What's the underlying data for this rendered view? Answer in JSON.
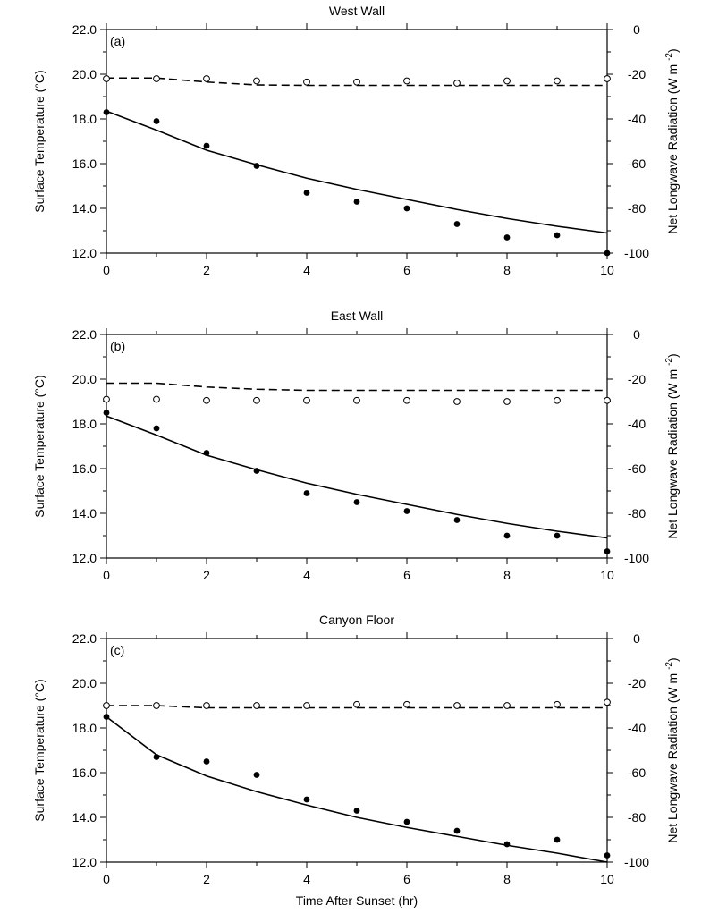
{
  "chart_data": [
    {
      "type": "scatter",
      "title": "West Wall",
      "panel_label": "(a)",
      "xlabel": "",
      "ylabel": "Surface Temperature (°C)",
      "y2label_main": "Net Longwave Radiation (W m",
      "y2label_sup": "-2",
      "y2label_tail": ")",
      "xlim": [
        0,
        10
      ],
      "ylim": [
        12,
        22
      ],
      "y2lim": [
        -100,
        0
      ],
      "xticks": [
        "0",
        "2",
        "4",
        "6",
        "8",
        "10"
      ],
      "yticks": [
        "12.0",
        "14.0",
        "16.0",
        "18.0",
        "20.0",
        "22.0"
      ],
      "y2ticks": [
        "-100",
        "-80",
        "-60",
        "-40",
        "-20",
        "0"
      ],
      "series": [
        {
          "kind": "line",
          "axis": "left",
          "x": [
            0,
            1,
            2,
            3,
            4,
            5,
            6,
            7,
            8,
            9,
            10
          ],
          "y": [
            18.35,
            17.5,
            16.6,
            15.95,
            15.35,
            14.85,
            14.4,
            13.95,
            13.55,
            13.2,
            12.9
          ]
        },
        {
          "kind": "line",
          "axis": "right",
          "x": [
            0,
            1,
            2,
            3,
            4,
            5,
            6,
            7,
            8,
            9,
            10
          ],
          "y": [
            -21.7,
            -21.7,
            -23.5,
            -24.8,
            -25,
            -25,
            -25,
            -25,
            -25,
            -25,
            -25
          ]
        },
        {
          "kind": "points",
          "axis": "left",
          "x": [
            0,
            1,
            2,
            3,
            4,
            5,
            6,
            7,
            8,
            9,
            10
          ],
          "y": [
            18.3,
            17.9,
            16.8,
            15.9,
            14.7,
            14.3,
            14.0,
            13.3,
            12.7,
            12.8,
            12.0
          ]
        },
        {
          "kind": "points",
          "axis": "right",
          "x": [
            0,
            1,
            2,
            3,
            4,
            5,
            6,
            7,
            8,
            9,
            10
          ],
          "y": [
            -22,
            -22,
            -22,
            -23,
            -23.5,
            -23.5,
            -23,
            -24,
            -23,
            -23,
            -22
          ]
        }
      ]
    },
    {
      "type": "scatter",
      "title": "East Wall",
      "panel_label": "(b)",
      "xlabel": "",
      "ylabel": "Surface Temperature (°C)",
      "y2label_main": "Net Longwave Radiation (W m",
      "y2label_sup": "-2",
      "y2label_tail": ")",
      "xlim": [
        0,
        10
      ],
      "ylim": [
        12,
        22
      ],
      "y2lim": [
        -100,
        0
      ],
      "xticks": [
        "0",
        "2",
        "4",
        "6",
        "8",
        "10"
      ],
      "yticks": [
        "12.0",
        "14.0",
        "16.0",
        "18.0",
        "20.0",
        "22.0"
      ],
      "y2ticks": [
        "-100",
        "-80",
        "-60",
        "-40",
        "-20",
        "0"
      ],
      "series": [
        {
          "kind": "line",
          "axis": "left",
          "x": [
            0,
            1,
            2,
            3,
            4,
            5,
            6,
            7,
            8,
            9,
            10
          ],
          "y": [
            18.35,
            17.5,
            16.6,
            15.95,
            15.35,
            14.85,
            14.4,
            13.95,
            13.55,
            13.2,
            12.9
          ]
        },
        {
          "kind": "line",
          "axis": "right",
          "x": [
            0,
            1,
            2,
            3,
            4,
            5,
            6,
            7,
            8,
            9,
            10
          ],
          "y": [
            -21.8,
            -21.8,
            -23.5,
            -24.5,
            -25,
            -25,
            -25,
            -25,
            -25,
            -25,
            -25
          ]
        },
        {
          "kind": "points",
          "axis": "left",
          "x": [
            0,
            1,
            2,
            3,
            4,
            5,
            6,
            7,
            8,
            9,
            10
          ],
          "y": [
            18.5,
            17.8,
            16.7,
            15.9,
            14.9,
            14.5,
            14.1,
            13.7,
            13.0,
            13.0,
            12.3
          ]
        },
        {
          "kind": "points",
          "axis": "right",
          "x": [
            0,
            1,
            2,
            3,
            4,
            5,
            6,
            7,
            8,
            9,
            10
          ],
          "y": [
            -29,
            -29,
            -29.5,
            -29.5,
            -29.5,
            -29.5,
            -29.5,
            -30,
            -30,
            -29.5,
            -29.5
          ]
        }
      ]
    },
    {
      "type": "scatter",
      "title": "Canyon Floor",
      "panel_label": "(c)",
      "xlabel": "Time After Sunset (hr)",
      "ylabel": "Surface Temperature (°C)",
      "y2label_main": "Net Longwave Radiation (W m",
      "y2label_sup": "-2",
      "y2label_tail": ")",
      "xlim": [
        0,
        10
      ],
      "ylim": [
        12,
        22
      ],
      "y2lim": [
        -100,
        0
      ],
      "xticks": [
        "0",
        "2",
        "4",
        "6",
        "8",
        "10"
      ],
      "yticks": [
        "12.0",
        "14.0",
        "16.0",
        "18.0",
        "20.0",
        "22.0"
      ],
      "y2ticks": [
        "-100",
        "-80",
        "-60",
        "-40",
        "-20",
        "0"
      ],
      "series": [
        {
          "kind": "line",
          "axis": "left",
          "x": [
            0,
            1,
            2,
            3,
            4,
            5,
            6,
            7,
            8,
            9,
            10
          ],
          "y": [
            18.5,
            16.8,
            15.85,
            15.15,
            14.55,
            14.0,
            13.55,
            13.15,
            12.75,
            12.4,
            12.0
          ]
        },
        {
          "kind": "line",
          "axis": "right",
          "x": [
            0,
            1,
            2,
            3,
            4,
            5,
            6,
            7,
            8,
            9,
            10
          ],
          "y": [
            -30,
            -30,
            -31,
            -31,
            -31,
            -31,
            -31,
            -31,
            -31,
            -31,
            -31
          ]
        },
        {
          "kind": "points",
          "axis": "left",
          "x": [
            0,
            1,
            2,
            3,
            4,
            5,
            6,
            7,
            8,
            9,
            10
          ],
          "y": [
            18.5,
            16.7,
            16.5,
            15.9,
            14.8,
            14.3,
            13.8,
            13.4,
            12.8,
            13.0,
            12.3
          ]
        },
        {
          "kind": "points",
          "axis": "right",
          "x": [
            0,
            1,
            2,
            3,
            4,
            5,
            6,
            7,
            8,
            9,
            10
          ],
          "y": [
            -30,
            -30,
            -30,
            -30,
            -30,
            -29.5,
            -29.5,
            -30,
            -30,
            -29.5,
            -28.5
          ]
        }
      ]
    }
  ]
}
